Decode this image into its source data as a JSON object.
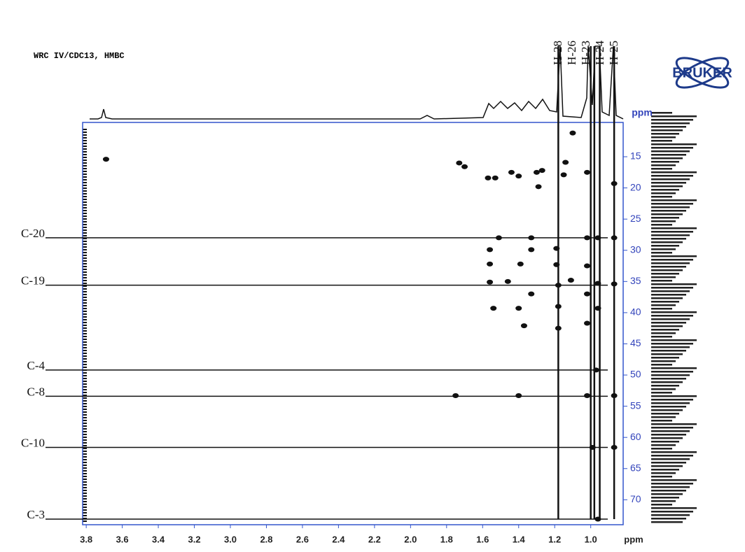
{
  "title": "WRC IV/CDC13, HMBC",
  "logo": "BRUKER",
  "chart_data": {
    "type": "hmbc",
    "x_label": "ppm",
    "y_label": "ppm",
    "xlim": [
      3.82,
      0.82
    ],
    "ylim": [
      9.5,
      74
    ],
    "xticks": [
      3.8,
      3.6,
      3.4,
      3.2,
      {
        "value": 3,
        "label": "3.0"
      },
      2.8,
      2.6,
      2.4,
      2.2,
      {
        "value": 2,
        "label": "2.0"
      },
      1.8,
      1.6,
      1.4,
      1.2,
      {
        "value": 1,
        "label": "1.0"
      }
    ],
    "yticks": [
      15,
      20,
      25,
      30,
      35,
      40,
      45,
      50,
      55,
      60,
      65,
      70
    ],
    "color": "#111111",
    "h_labels": [
      {
        "label": "H-28",
        "value": 1.18
      },
      {
        "label": "H-26",
        "value": 1.0
      },
      {
        "label": "H-23",
        "value": 0.98
      },
      {
        "label": "H-24",
        "value": 0.95
      },
      {
        "label": "H-25",
        "value": 0.87
      }
    ],
    "c_labels": [
      {
        "label": "C-20",
        "value": 28.0
      },
      {
        "label": "C-19",
        "value": 35.6
      },
      {
        "label": "C-4",
        "value": 49.2
      },
      {
        "label": "C-8",
        "value": 53.4
      },
      {
        "label": "C-10",
        "value": 61.6
      },
      {
        "label": "C-3",
        "value": 73.1
      }
    ],
    "x": [
      3.69,
      1.73,
      1.7,
      1.57,
      1.53,
      1.44,
      1.4,
      1.3,
      1.27,
      1.29,
      1.15,
      1.02,
      1.14,
      1.1,
      0.87,
      1.51,
      1.33,
      1.56,
      1.33,
      1.19,
      1.56,
      1.39,
      1.19,
      1.56,
      1.46,
      1.18,
      1.33,
      1.54,
      1.4,
      1.18,
      1.37,
      1.18,
      1.02,
      1.02,
      1.02,
      1.02,
      0.96,
      0.96,
      0.96,
      0.87,
      0.87,
      0.97,
      1.02,
      0.87,
      1.75,
      1.4,
      0.99,
      0.87,
      0.96,
      1.11
    ],
    "values": [
      15.4,
      16.0,
      16.6,
      18.4,
      18.4,
      17.5,
      18.1,
      17.5,
      17.2,
      19.8,
      17.9,
      17.5,
      15.9,
      11.2,
      19.3,
      28.0,
      28.0,
      29.9,
      29.9,
      29.7,
      32.2,
      32.2,
      32.3,
      35.1,
      35.0,
      35.6,
      37.0,
      39.3,
      39.3,
      39.0,
      42.1,
      42.5,
      28.0,
      32.5,
      37.0,
      41.7,
      28.0,
      35.3,
      39.3,
      28.0,
      35.4,
      49.2,
      53.3,
      53.3,
      53.3,
      53.3,
      61.6,
      61.6,
      73.1,
      34.8
    ]
  }
}
